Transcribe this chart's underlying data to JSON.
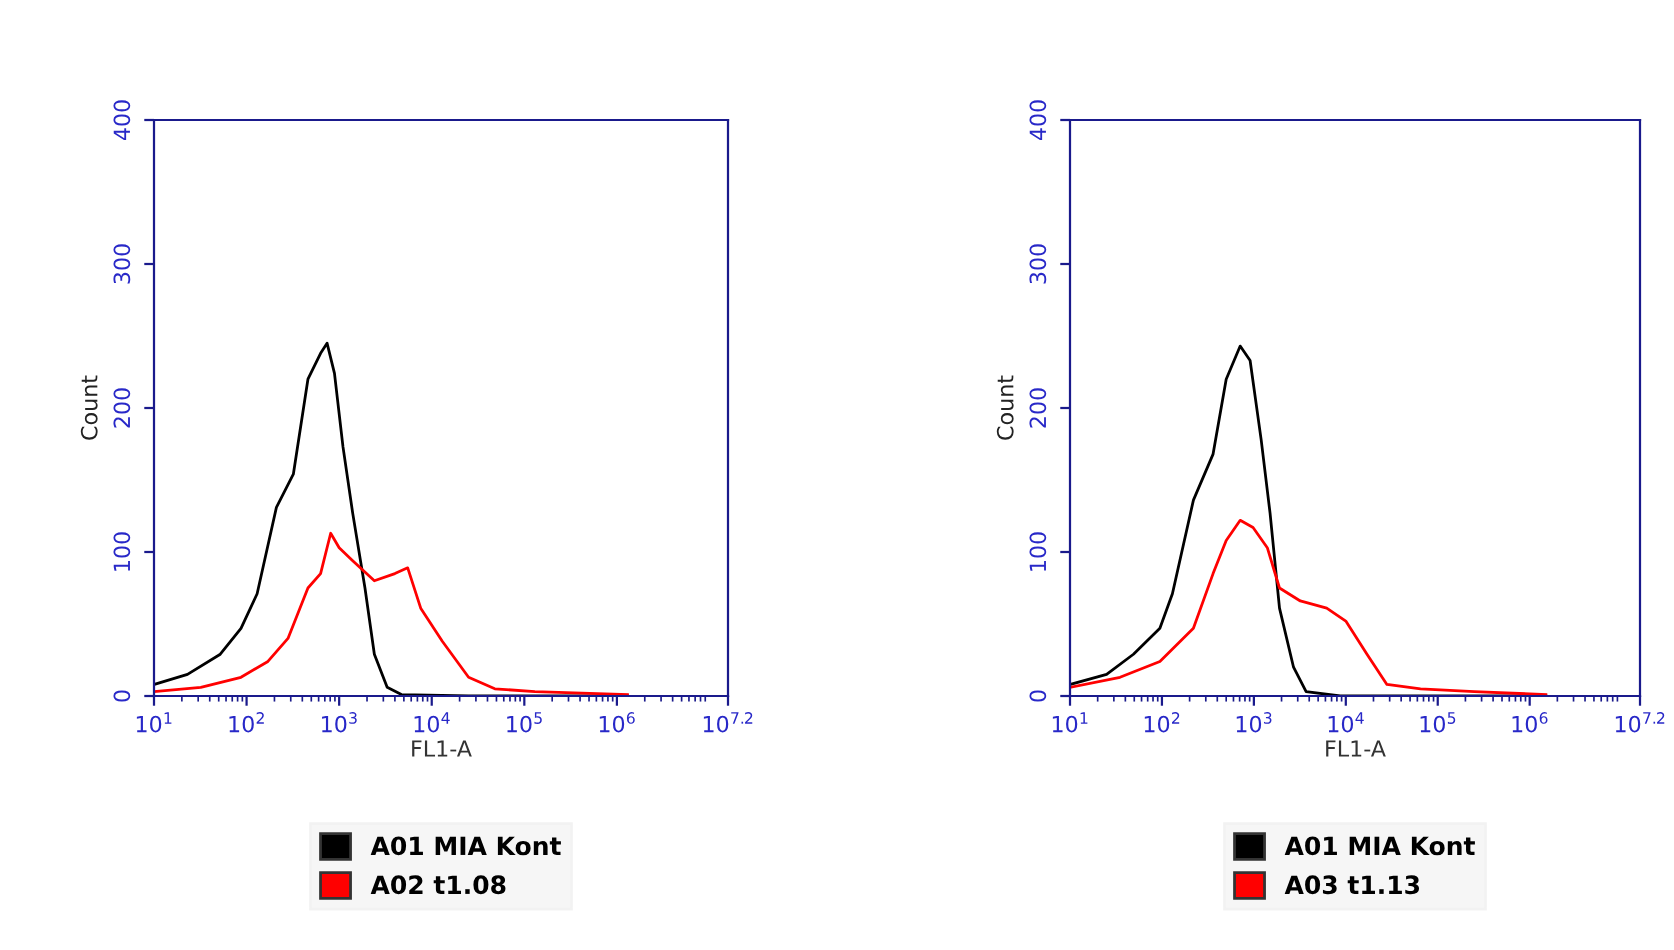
{
  "chart_data": [
    {
      "type": "line",
      "xlabel": "FL1-A",
      "ylabel": "Count",
      "log": "x",
      "grid": false,
      "legend": "bottom",
      "xlim": [
        10,
        15848932
      ],
      "xticks": [
        {
          "value": 10,
          "label": "10$^{1}$"
        },
        {
          "value": 100,
          "label": "10$^{2}$"
        },
        {
          "value": 1000,
          "label": "10$^{3}$"
        },
        {
          "value": 10000,
          "label": "10$^{4}$"
        },
        {
          "value": 100000,
          "label": "10$^{5}$"
        },
        {
          "value": 1000000,
          "label": "10$^{6}$"
        },
        {
          "value": 15848932,
          "label": "10$^{7.2}$"
        }
      ],
      "ylim": [
        0,
        400
      ],
      "yticks": [
        0,
        100,
        200,
        300,
        400
      ],
      "series": [
        {
          "name": "A01 MIA Kont",
          "color": "#000000",
          "x": [
            10,
            23,
            52,
            87,
            130,
            210,
            320,
            460,
            630,
            740,
            890,
            1100,
            1400,
            1900,
            2400,
            3300,
            4700,
            25000,
            1300000
          ],
          "values": [
            8,
            15,
            29,
            47,
            71,
            131,
            154,
            220,
            238,
            245,
            224,
            173,
            127,
            75,
            29,
            6,
            1,
            0,
            0
          ]
        },
        {
          "name": "A02 t1.08",
          "color": "#ff0000",
          "x": [
            10,
            32,
            87,
            170,
            280,
            460,
            630,
            810,
            1000,
            1400,
            2400,
            4000,
            5500,
            7600,
            13000,
            25000,
            48000,
            130000,
            1300000
          ],
          "values": [
            3,
            6,
            13,
            24,
            40,
            75,
            85,
            113,
            103,
            94,
            80,
            85,
            89,
            61,
            38,
            13,
            5,
            3,
            1
          ]
        }
      ]
    },
    {
      "type": "line",
      "xlabel": "FL1-A",
      "ylabel": "Count",
      "log": "x",
      "grid": false,
      "legend": "bottom",
      "xlim": [
        10,
        15848932
      ],
      "xticks": [
        {
          "value": 10,
          "label": "10$^{1}$"
        },
        {
          "value": 100,
          "label": "10$^{2}$"
        },
        {
          "value": 1000,
          "label": "10$^{3}$"
        },
        {
          "value": 10000,
          "label": "10$^{4}$"
        },
        {
          "value": 100000,
          "label": "10$^{5}$"
        },
        {
          "value": 1000000,
          "label": "10$^{6}$"
        },
        {
          "value": 15848932,
          "label": "10$^{7.2}$"
        }
      ],
      "ylim": [
        0,
        400
      ],
      "yticks": [
        0,
        100,
        200,
        300,
        400
      ],
      "series": [
        {
          "name": "A01 MIA Kont",
          "color": "#000000",
          "x": [
            10,
            25,
            49,
            95,
            130,
            220,
            360,
            500,
            710,
            910,
            1200,
            1500,
            1900,
            2700,
            3700,
            8700,
            1500000
          ],
          "values": [
            8,
            15,
            29,
            47,
            71,
            136,
            168,
            220,
            243,
            233,
            178,
            127,
            61,
            20,
            3,
            0,
            0
          ]
        },
        {
          "name": "A03 t1.13",
          "color": "#ff0000",
          "x": [
            10,
            35,
            95,
            220,
            360,
            500,
            710,
            980,
            1400,
            1900,
            3200,
            6200,
            10000,
            17000,
            28000,
            65000,
            250000,
            1500000
          ],
          "values": [
            6,
            13,
            24,
            47,
            85,
            108,
            122,
            117,
            103,
            75,
            66,
            61,
            52,
            29,
            8,
            5,
            3,
            1
          ]
        }
      ]
    }
  ]
}
